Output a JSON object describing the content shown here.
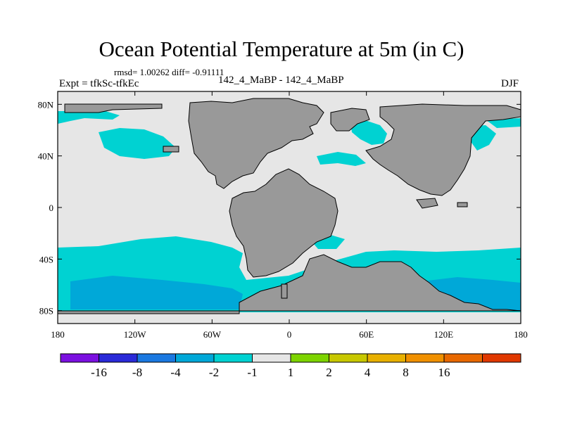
{
  "title": "Ocean Potential Temperature at 5m (in C)",
  "stats_line": "rmsd= 1.00262 diff= -0.91111",
  "expt_label": "Expt = tfkSc-tfkEc",
  "case_label": "142_4_MaBP - 142_4_MaBP",
  "season_label": "DJF",
  "map": {
    "x_ticks": [
      {
        "value": -180,
        "label": "180"
      },
      {
        "value": -120,
        "label": "120W"
      },
      {
        "value": -60,
        "label": "60W"
      },
      {
        "value": 0,
        "label": "0"
      },
      {
        "value": 60,
        "label": "60E"
      },
      {
        "value": 120,
        "label": "120E"
      },
      {
        "value": 180,
        "label": "180"
      }
    ],
    "y_ticks": [
      {
        "value": 80,
        "label": "80N"
      },
      {
        "value": 40,
        "label": "40N"
      },
      {
        "value": 0,
        "label": "0"
      },
      {
        "value": -40,
        "label": "40S"
      },
      {
        "value": -80,
        "label": "80S"
      }
    ],
    "colors": {
      "land": "#999999",
      "ocean_neutral": "#e6e6e6",
      "minus1_to_minus2": "#00d2d2",
      "minus2_to_minus4": "#00a8d8"
    }
  },
  "colorbar": {
    "colors": [
      "#7b10e0",
      "#2a2ad8",
      "#1a78e0",
      "#00a8d8",
      "#00d2d2",
      "#e6e6e6",
      "#7dd400",
      "#c8c800",
      "#e8b000",
      "#f09000",
      "#e86800",
      "#e03800"
    ],
    "labels": [
      "-16",
      "-8",
      "-4",
      "-2",
      "-1",
      "1",
      "2",
      "4",
      "8",
      "16"
    ]
  }
}
